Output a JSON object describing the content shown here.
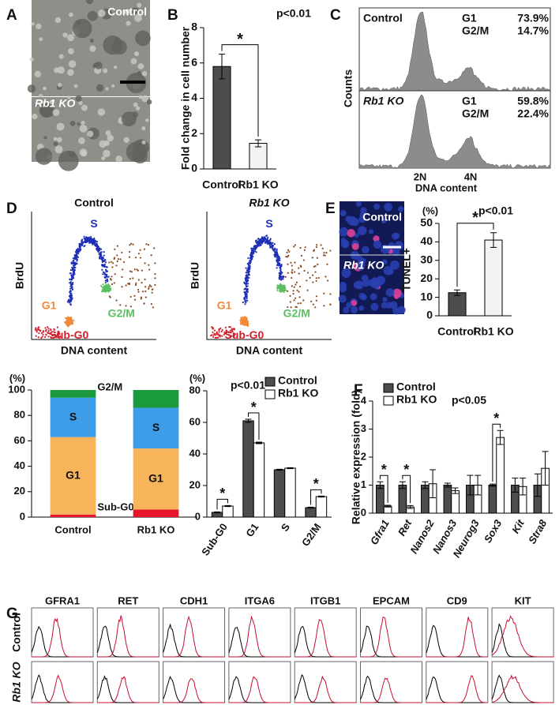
{
  "panel_labels": [
    "A",
    "B",
    "C",
    "D",
    "E",
    "F",
    "G"
  ],
  "panels": {
    "a": {
      "top_label": "Control",
      "bottom_label": "Rb1 KO"
    },
    "c": {
      "ylabel": "Counts",
      "xlabel": "DNA content",
      "x_tick_labels": [
        "2N",
        "4N"
      ],
      "samples": [
        {
          "name": "Control",
          "phases": [
            "G1",
            "G2/M"
          ],
          "percentages": [
            "73.9%",
            "14.7%"
          ]
        },
        {
          "name": "Rb1 KO",
          "phases": [
            "G1",
            "G2/M"
          ],
          "percentages": [
            "59.8%",
            "22.4%"
          ]
        }
      ]
    },
    "d": {
      "plots": [
        "Control",
        "Rb1 KO"
      ],
      "xlabel": "DNA content",
      "ylabel": "BrdU",
      "gates": [
        {
          "name": "S",
          "color": "#1f2fb5"
        },
        {
          "name": "G1",
          "color": "#f08a3a"
        },
        {
          "name": "G2/M",
          "color": "#5cbf63"
        },
        {
          "name": "Sub-G0",
          "color": "#d0202c"
        }
      ]
    },
    "e": {
      "image_labels": [
        "Control",
        "Rb1 KO"
      ]
    },
    "g": {
      "markers": [
        "GFRA1",
        "RET",
        "CDH1",
        "ITGA6",
        "ITGB1",
        "EPCAM",
        "CD9",
        "KIT"
      ],
      "rows": [
        "Control",
        "Rb1 KO"
      ]
    }
  },
  "chart_data": [
    {
      "type": "bar",
      "ylabel": "Fold change in cell number",
      "categories": [
        "Control",
        "Rb1 KO"
      ],
      "values": [
        5.8,
        1.45
      ],
      "errors": [
        0.7,
        0.2
      ],
      "colors": [
        "#4d4d4d",
        "#f3f3f3"
      ],
      "ylim": [
        0,
        8
      ],
      "yticks": [
        0,
        2,
        4,
        6,
        8
      ],
      "annotation": "p<0.01",
      "significance": "*"
    },
    {
      "type": "stacked_bar",
      "ylabel": "(%)",
      "categories": [
        "Control",
        "Rb1 KO"
      ],
      "series": [
        {
          "name": "Sub-G0",
          "color": "#e8142a",
          "values": [
            2,
            6
          ]
        },
        {
          "name": "G1",
          "color": "#f8b45a",
          "values": [
            61,
            48
          ]
        },
        {
          "name": "S",
          "color": "#3d9de8",
          "values": [
            31,
            32
          ]
        },
        {
          "name": "G2/M",
          "color": "#1a9a3c",
          "values": [
            6,
            14
          ]
        }
      ],
      "ylim": [
        0,
        100
      ],
      "yticks": [
        0,
        20,
        40,
        60,
        80,
        100
      ]
    },
    {
      "type": "grouped_bar",
      "ylabel": "(%)",
      "categories": [
        "Sub-G0",
        "G1",
        "S",
        "G2/M"
      ],
      "series": [
        {
          "name": "Control",
          "color": "#4d4d4d",
          "values": [
            3,
            61,
            30,
            6
          ],
          "errors": [
            0.3,
            1,
            0.3,
            0.3
          ]
        },
        {
          "name": "Rb1 KO",
          "color": "#ffffff",
          "values": [
            7,
            47,
            31,
            13
          ],
          "errors": [
            0.3,
            0.5,
            0.3,
            0.3
          ]
        }
      ],
      "ylim": [
        0,
        80
      ],
      "yticks": [
        0,
        20,
        40,
        60,
        80
      ],
      "annotation": "p<0.01",
      "marks": [
        "*",
        "*",
        null,
        "*"
      ],
      "legend": true
    },
    {
      "type": "bar",
      "ylabel": "TUNEL+",
      "unit": "(%)",
      "categories": [
        "Control",
        "Rb1 KO"
      ],
      "values": [
        12.5,
        41
      ],
      "errors": [
        1.5,
        4
      ],
      "colors": [
        "#4d4d4d",
        "#f3f3f3"
      ],
      "ylim": [
        0,
        50
      ],
      "yticks": [
        0,
        10,
        20,
        30,
        40,
        50
      ],
      "annotation": "p<0.01",
      "significance": "*"
    },
    {
      "type": "grouped_bar",
      "ylabel": "Relative expression (fold)",
      "categories": [
        "Gfra1",
        "Ret",
        "Nanos2",
        "Nanos3",
        "Neurog3",
        "Sox3",
        "Kit",
        "Stra8"
      ],
      "series": [
        {
          "name": "Control",
          "color": "#4d4d4d",
          "values": [
            1,
            1,
            1,
            1,
            1,
            1,
            1,
            1
          ],
          "errors": [
            0.12,
            0.12,
            0.12,
            0.07,
            0.35,
            0.04,
            0.25,
            0.4
          ]
        },
        {
          "name": "Rb1 KO",
          "color": "#ffffff",
          "values": [
            0.25,
            0.22,
            1.05,
            0.8,
            1.0,
            2.7,
            0.95,
            1.6
          ],
          "errors": [
            0.03,
            0.05,
            0.5,
            0.1,
            0.35,
            0.25,
            0.3,
            0.6
          ]
        }
      ],
      "ylim": [
        0,
        4
      ],
      "yticks": [
        0,
        1,
        2,
        3,
        4
      ],
      "annotation": "p<0.05",
      "marks": [
        "*",
        "*",
        null,
        null,
        null,
        "*",
        null,
        null
      ],
      "legend": true
    }
  ]
}
